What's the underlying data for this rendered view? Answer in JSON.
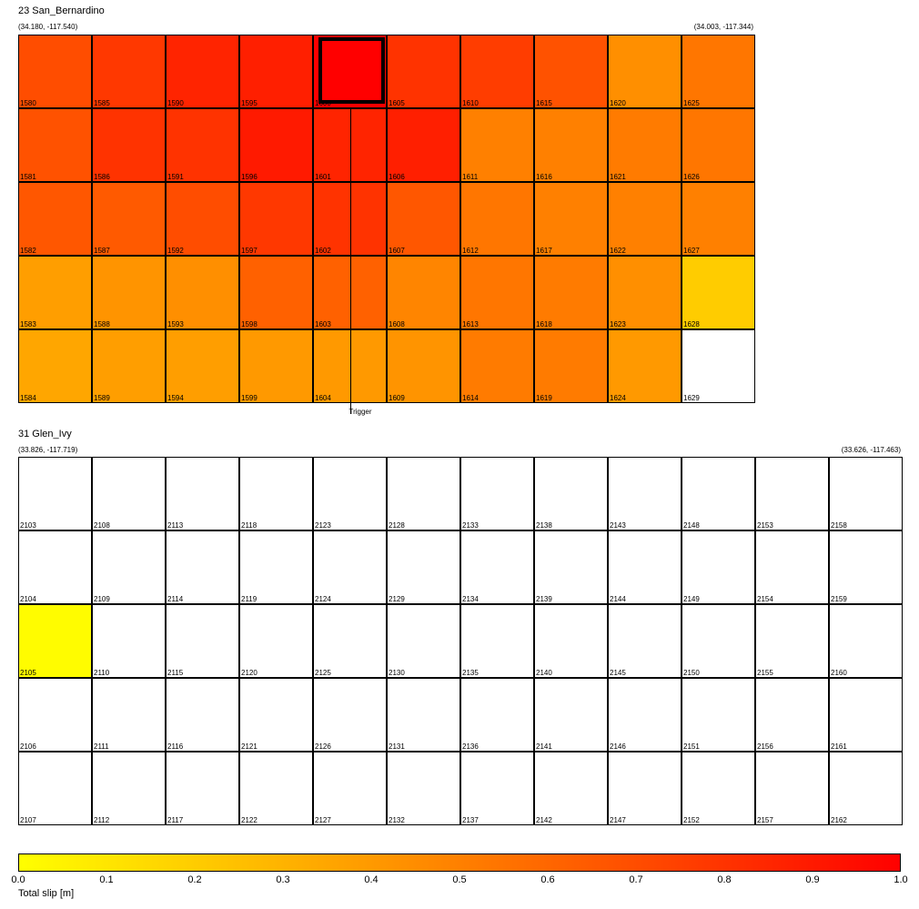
{
  "chart_data": {
    "type": "heatmap",
    "colormap": {
      "low": "#ffff00",
      "mid": "#ff8000",
      "high": "#ff0000",
      "zero_patch_color": "#ffffff"
    },
    "panels": [
      {
        "title": "23 San_Bernardino",
        "corner_left": "(34.180, -117.540)",
        "corner_right": "(34.003, -117.344)",
        "trigger_label": "Trigger",
        "trigger_column": 4,
        "hypocenter_patch": "1600",
        "columns": [
          {
            "ids": [
              "1580",
              "1581",
              "1582",
              "1583",
              "1584"
            ],
            "slip": [
              0.7,
              0.68,
              0.66,
              0.38,
              0.35
            ]
          },
          {
            "ids": [
              "1585",
              "1586",
              "1587",
              "1588",
              "1589"
            ],
            "slip": [
              0.78,
              0.8,
              0.65,
              0.42,
              0.38
            ]
          },
          {
            "ids": [
              "1590",
              "1591",
              "1592",
              "1593",
              "1594"
            ],
            "slip": [
              0.86,
              0.8,
              0.7,
              0.44,
              0.38
            ]
          },
          {
            "ids": [
              "1595",
              "1596",
              "1597",
              "1598",
              "1599"
            ],
            "slip": [
              0.88,
              0.9,
              0.78,
              0.62,
              0.4
            ]
          },
          {
            "ids": [
              "1600",
              "1601",
              "1602",
              "1603",
              "1604"
            ],
            "slip": [
              1.0,
              0.86,
              0.8,
              0.62,
              0.4
            ]
          },
          {
            "ids": [
              "1605",
              "1606",
              "1607",
              "1608",
              "1609"
            ],
            "slip": [
              0.8,
              0.88,
              0.66,
              0.48,
              0.42
            ]
          },
          {
            "ids": [
              "1610",
              "1611",
              "1612",
              "1613",
              "1614"
            ],
            "slip": [
              0.76,
              0.5,
              0.54,
              0.54,
              0.52
            ]
          },
          {
            "ids": [
              "1615",
              "1616",
              "1617",
              "1618",
              "1619"
            ],
            "slip": [
              0.68,
              0.5,
              0.5,
              0.52,
              0.52
            ]
          },
          {
            "ids": [
              "1620",
              "1621",
              "1622",
              "1623",
              "1624"
            ],
            "slip": [
              0.44,
              0.52,
              0.5,
              0.44,
              0.4
            ]
          },
          {
            "ids": [
              "1625",
              "1626",
              "1627",
              "1628",
              "1629"
            ],
            "slip": [
              0.54,
              0.54,
              0.5,
              0.2,
              0.0
            ]
          }
        ]
      },
      {
        "title": "31 Glen_Ivy",
        "corner_left": "(33.826, -117.719)",
        "corner_right": "(33.626, -117.463)",
        "columns": [
          {
            "ids": [
              "2103",
              "2104",
              "2105",
              "2106",
              "2107"
            ],
            "slip": [
              0,
              0,
              0.01,
              0,
              0
            ]
          },
          {
            "ids": [
              "2108",
              "2109",
              "2110",
              "2111",
              "2112"
            ],
            "slip": [
              0,
              0,
              0,
              0,
              0
            ]
          },
          {
            "ids": [
              "2113",
              "2114",
              "2115",
              "2116",
              "2117"
            ],
            "slip": [
              0,
              0,
              0,
              0,
              0
            ]
          },
          {
            "ids": [
              "2118",
              "2119",
              "2120",
              "2121",
              "2122"
            ],
            "slip": [
              0,
              0,
              0,
              0,
              0
            ]
          },
          {
            "ids": [
              "2123",
              "2124",
              "2125",
              "2126",
              "2127"
            ],
            "slip": [
              0,
              0,
              0,
              0,
              0
            ]
          },
          {
            "ids": [
              "2128",
              "2129",
              "2130",
              "2131",
              "2132"
            ],
            "slip": [
              0,
              0,
              0,
              0,
              0
            ]
          },
          {
            "ids": [
              "2133",
              "2134",
              "2135",
              "2136",
              "2137"
            ],
            "slip": [
              0,
              0,
              0,
              0,
              0
            ]
          },
          {
            "ids": [
              "2138",
              "2139",
              "2140",
              "2141",
              "2142"
            ],
            "slip": [
              0,
              0,
              0,
              0,
              0
            ]
          },
          {
            "ids": [
              "2143",
              "2144",
              "2145",
              "2146",
              "2147"
            ],
            "slip": [
              0,
              0,
              0,
              0,
              0
            ]
          },
          {
            "ids": [
              "2148",
              "2149",
              "2150",
              "2151",
              "2152"
            ],
            "slip": [
              0,
              0,
              0,
              0,
              0
            ]
          },
          {
            "ids": [
              "2153",
              "2154",
              "2155",
              "2156",
              "2157"
            ],
            "slip": [
              0,
              0,
              0,
              0,
              0
            ]
          },
          {
            "ids": [
              "2158",
              "2159",
              "2160",
              "2161",
              "2162"
            ],
            "slip": [
              0,
              0,
              0,
              0,
              0
            ]
          }
        ]
      }
    ],
    "colorbar": {
      "label": "Total slip [m]",
      "range": [
        0.0,
        1.0
      ],
      "ticks": [
        "0.0",
        "0.1",
        "0.2",
        "0.3",
        "0.4",
        "0.5",
        "0.6",
        "0.7",
        "0.8",
        "0.9",
        "1.0"
      ]
    }
  }
}
